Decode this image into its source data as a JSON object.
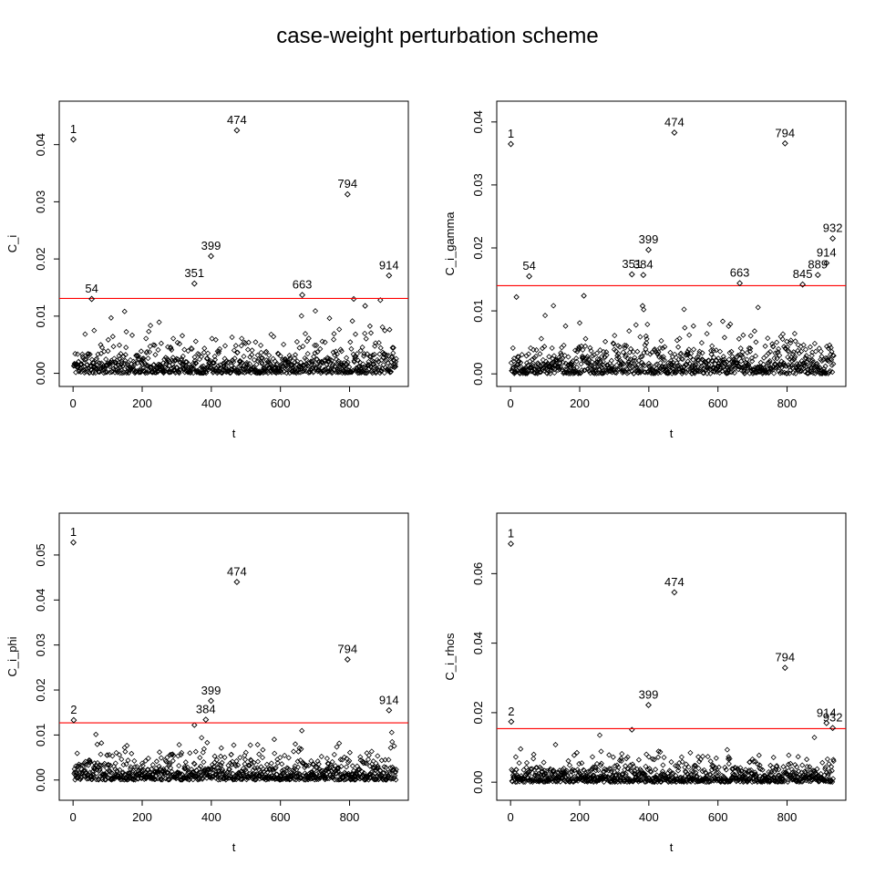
{
  "figure": {
    "title": "case-weight perturbation scheme",
    "background": "#ffffff",
    "text_color": "#000000",
    "threshold_color": "#ff0000",
    "marker": "open-diamond",
    "layout": "2x2-grid",
    "grid": "off",
    "legend": "none"
  },
  "chart_data": [
    {
      "type": "scatter",
      "panel": "top-left",
      "ylabel": "C_i",
      "xlabel": "t",
      "x_ticks": [
        0,
        200,
        400,
        600,
        800
      ],
      "x_tick_labels": [
        "0",
        "200",
        "400",
        "600",
        "800"
      ],
      "y_ticks": [
        0,
        0.01,
        0.02,
        0.03,
        0.04
      ],
      "y_tick_labels": [
        "0.00",
        "0.01",
        "0.02",
        "0.03",
        "0.04"
      ],
      "xlim": [
        -40,
        970
      ],
      "ylim": [
        -0.0023,
        0.0476
      ],
      "threshold": 0.0131,
      "labeled_points": [
        {
          "label": "1",
          "t": 1,
          "value": 0.0409
        },
        {
          "label": "54",
          "t": 54,
          "value": 0.013
        },
        {
          "label": "351",
          "t": 351,
          "value": 0.0157
        },
        {
          "label": "399",
          "t": 399,
          "value": 0.0205
        },
        {
          "label": "474",
          "t": 474,
          "value": 0.0425
        },
        {
          "label": "663",
          "t": 663,
          "value": 0.0137
        },
        {
          "label": "794",
          "t": 794,
          "value": 0.0313
        },
        {
          "label": "914",
          "t": 914,
          "value": 0.0171
        }
      ],
      "extra_points": [
        {
          "t": 812,
          "value": 0.013
        },
        {
          "t": 845,
          "value": 0.0118
        },
        {
          "t": 889,
          "value": 0.0128
        }
      ],
      "background_points": {
        "n": 935,
        "seed": 11,
        "exp_mean": 0.0018,
        "note": "dense unlabeled scatter below threshold, concentrated near 0"
      }
    },
    {
      "type": "scatter",
      "panel": "top-right",
      "ylabel": "C_i_gamma",
      "xlabel": "t",
      "x_ticks": [
        0,
        200,
        400,
        600,
        800
      ],
      "x_tick_labels": [
        "0",
        "200",
        "400",
        "600",
        "800"
      ],
      "y_ticks": [
        0,
        0.01,
        0.02,
        0.03,
        0.04
      ],
      "y_tick_labels": [
        "0.00",
        "0.01",
        "0.02",
        "0.03",
        "0.04"
      ],
      "xlim": [
        -40,
        970
      ],
      "ylim": [
        -0.002,
        0.0433
      ],
      "threshold": 0.014,
      "labeled_points": [
        {
          "label": "1",
          "t": 1,
          "value": 0.0365
        },
        {
          "label": "54",
          "t": 54,
          "value": 0.0155
        },
        {
          "label": "351",
          "t": 351,
          "value": 0.0158
        },
        {
          "label": "384",
          "t": 384,
          "value": 0.0157
        },
        {
          "label": "399",
          "t": 399,
          "value": 0.0197
        },
        {
          "label": "474",
          "t": 474,
          "value": 0.0383
        },
        {
          "label": "663",
          "t": 663,
          "value": 0.0144
        },
        {
          "label": "794",
          "t": 794,
          "value": 0.0366
        },
        {
          "label": "845",
          "t": 845,
          "value": 0.0142
        },
        {
          "label": "889",
          "t": 889,
          "value": 0.0157
        },
        {
          "label": "914",
          "t": 914,
          "value": 0.0176
        },
        {
          "label": "932",
          "t": 932,
          "value": 0.0215
        }
      ],
      "extra_points": [
        {
          "t": 17,
          "value": 0.0122
        },
        {
          "t": 212,
          "value": 0.0124
        },
        {
          "t": 382,
          "value": 0.0108
        }
      ],
      "background_points": {
        "n": 935,
        "seed": 22,
        "exp_mean": 0.0018,
        "note": "dense unlabeled scatter below threshold, concentrated near 0"
      }
    },
    {
      "type": "scatter",
      "panel": "bottom-left",
      "ylabel": "C_i_phi",
      "xlabel": "t",
      "x_ticks": [
        0,
        200,
        400,
        600,
        800
      ],
      "x_tick_labels": [
        "0",
        "200",
        "400",
        "600",
        "800"
      ],
      "y_ticks": [
        0,
        0.01,
        0.02,
        0.03,
        0.04,
        0.05
      ],
      "y_tick_labels": [
        "0.00",
        "0.01",
        "0.02",
        "0.03",
        "0.04",
        "0.05"
      ],
      "xlim": [
        -40,
        970
      ],
      "ylim": [
        -0.0045,
        0.0593
      ],
      "threshold": 0.0127,
      "labeled_points": [
        {
          "label": "1",
          "t": 1,
          "value": 0.0528
        },
        {
          "label": "2",
          "t": 2,
          "value": 0.0133
        },
        {
          "label": "384",
          "t": 384,
          "value": 0.0134
        },
        {
          "label": "399",
          "t": 399,
          "value": 0.0176
        },
        {
          "label": "474",
          "t": 474,
          "value": 0.044
        },
        {
          "label": "794",
          "t": 794,
          "value": 0.0268
        },
        {
          "label": "914",
          "t": 914,
          "value": 0.0155
        }
      ],
      "extra_points": [
        {
          "t": 351,
          "value": 0.0122
        }
      ],
      "background_points": {
        "n": 935,
        "seed": 33,
        "exp_mean": 0.0018,
        "note": "dense unlabeled scatter below threshold, concentrated near 0"
      }
    },
    {
      "type": "scatter",
      "panel": "bottom-right",
      "ylabel": "C_i_rhos",
      "xlabel": "t",
      "x_ticks": [
        0,
        200,
        400,
        600,
        800
      ],
      "x_tick_labels": [
        "0",
        "200",
        "400",
        "600",
        "800"
      ],
      "y_ticks": [
        0,
        0.02,
        0.04,
        0.06
      ],
      "y_tick_labels": [
        "0.00",
        "0.02",
        "0.04",
        "0.06"
      ],
      "xlim": [
        -40,
        970
      ],
      "ylim": [
        -0.0052,
        0.0774
      ],
      "threshold": 0.0154,
      "labeled_points": [
        {
          "label": "1",
          "t": 1,
          "value": 0.0686
        },
        {
          "label": "2",
          "t": 2,
          "value": 0.0174
        },
        {
          "label": "399",
          "t": 399,
          "value": 0.0222
        },
        {
          "label": "474",
          "t": 474,
          "value": 0.0546
        },
        {
          "label": "794",
          "t": 794,
          "value": 0.0329
        },
        {
          "label": "914",
          "t": 914,
          "value": 0.017
        },
        {
          "label": "932",
          "t": 932,
          "value": 0.0156
        }
      ],
      "extra_points": [
        {
          "t": 351,
          "value": 0.0151
        }
      ],
      "background_points": {
        "n": 935,
        "seed": 44,
        "exp_mean": 0.002,
        "note": "dense unlabeled scatter below threshold, concentrated near 0"
      }
    }
  ]
}
